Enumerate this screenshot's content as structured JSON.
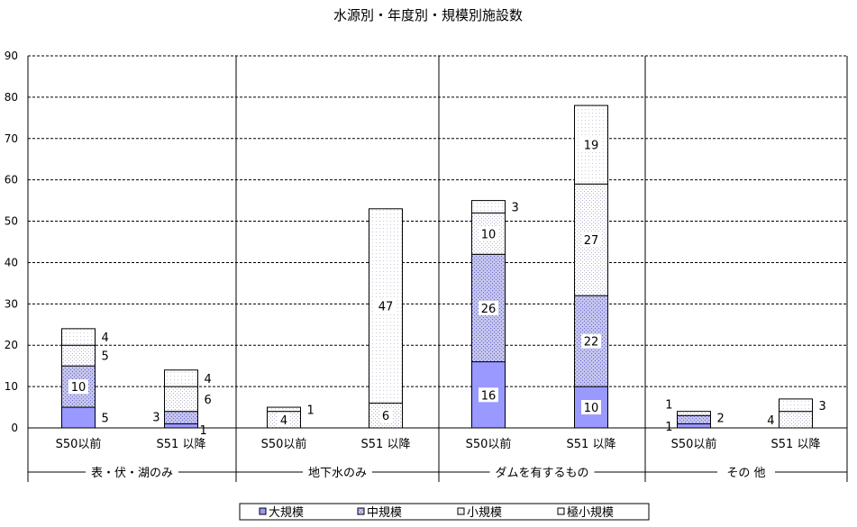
{
  "chart_data": {
    "type": "bar",
    "stacked": true,
    "title": "水源別・年度別・規模別施設数",
    "ylim": [
      0,
      90
    ],
    "yticks": [
      0,
      10,
      20,
      30,
      40,
      50,
      60,
      70,
      80,
      90
    ],
    "grid": true,
    "legend_position": "bottom",
    "groups": [
      "表・伏・湖のみ",
      "地下水のみ",
      "ダムを有するもの",
      "その 他"
    ],
    "categories": [
      "S50以前",
      "S51 以降",
      "S50以前",
      "S51 以降",
      "S50以前",
      "S51 以降",
      "S50以前",
      "S51 以降"
    ],
    "series": [
      {
        "name": "大規模",
        "color": "#9999ff",
        "values": [
          5,
          1,
          0,
          0,
          16,
          10,
          1,
          0
        ],
        "labels": [
          "5",
          "",
          "",
          "",
          "16",
          "10",
          "1",
          ""
        ]
      },
      {
        "name": "中規模",
        "color": "#9999ff",
        "values": [
          10,
          3,
          0,
          0,
          26,
          22,
          2,
          0
        ],
        "labels": [
          "10",
          "3",
          "",
          "",
          "26",
          "22",
          "2",
          ""
        ]
      },
      {
        "name": "小規模",
        "color": "#e8e8f0",
        "values": [
          5,
          6,
          4,
          6,
          10,
          27,
          1,
          4
        ],
        "labels": [
          "5",
          "6",
          "4",
          "6",
          "10",
          "27",
          "1",
          "4"
        ]
      },
      {
        "name": "極小規模",
        "color": "#ffffff",
        "values": [
          4,
          4,
          1,
          47,
          3,
          19,
          0,
          3
        ],
        "labels": [
          "4",
          "4",
          "1",
          "47",
          "3",
          "19",
          "",
          "3"
        ]
      }
    ]
  }
}
